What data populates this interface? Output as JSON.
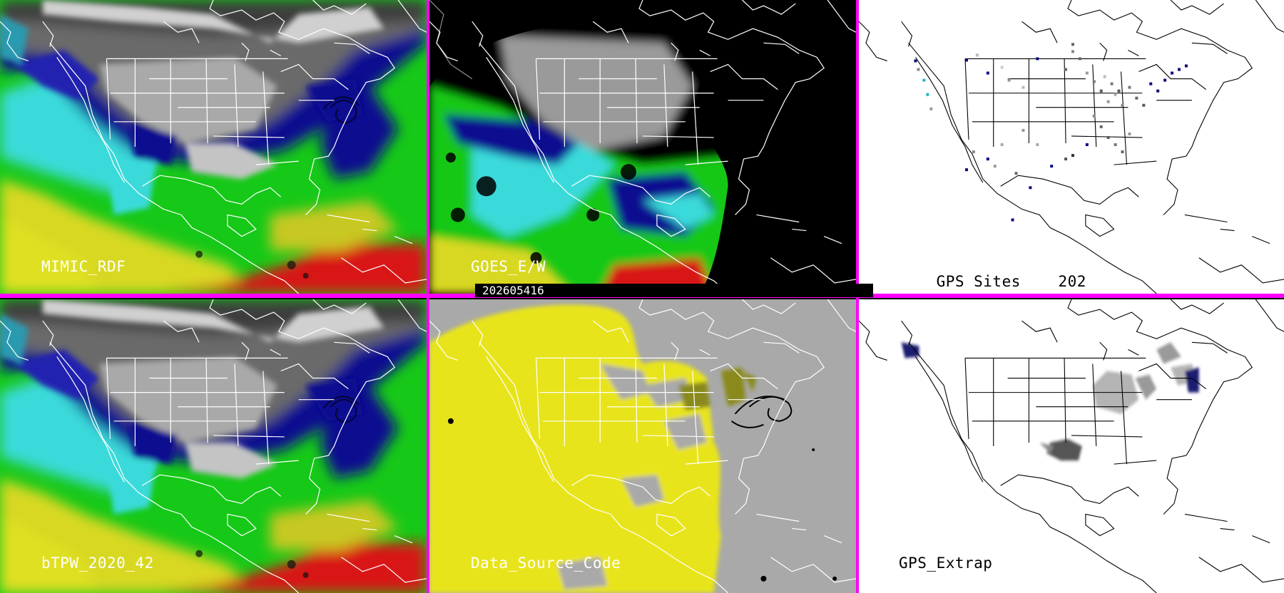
{
  "panels": [
    {
      "id": "p1",
      "label": "MIMIC_RDF",
      "label_color": "#ffffff",
      "theme": "tpw"
    },
    {
      "id": "p2",
      "label": "GOES_E/W",
      "label_color": "#ffffff",
      "theme": "goes"
    },
    {
      "id": "p3",
      "label": "GPS Sites",
      "count": "202",
      "label_color": "#000000",
      "theme": "gps"
    },
    {
      "id": "p4",
      "label": "bTPW_2020_42",
      "label_color": "#ffffff",
      "theme": "tpw"
    },
    {
      "id": "p5",
      "label": "Data_Source_Code",
      "label_color": "#ffffff",
      "theme": "dsc"
    },
    {
      "id": "p6",
      "label": "GPS_Extrap",
      "label_color": "#000000",
      "theme": "extrap"
    }
  ],
  "timestamp": "202605416",
  "colors": {
    "divider": "#ff00ff",
    "dsc_yellow": "#e8e41a",
    "dsc_gray": "#a9a9a9",
    "gps_navy": "#0a0a80"
  }
}
